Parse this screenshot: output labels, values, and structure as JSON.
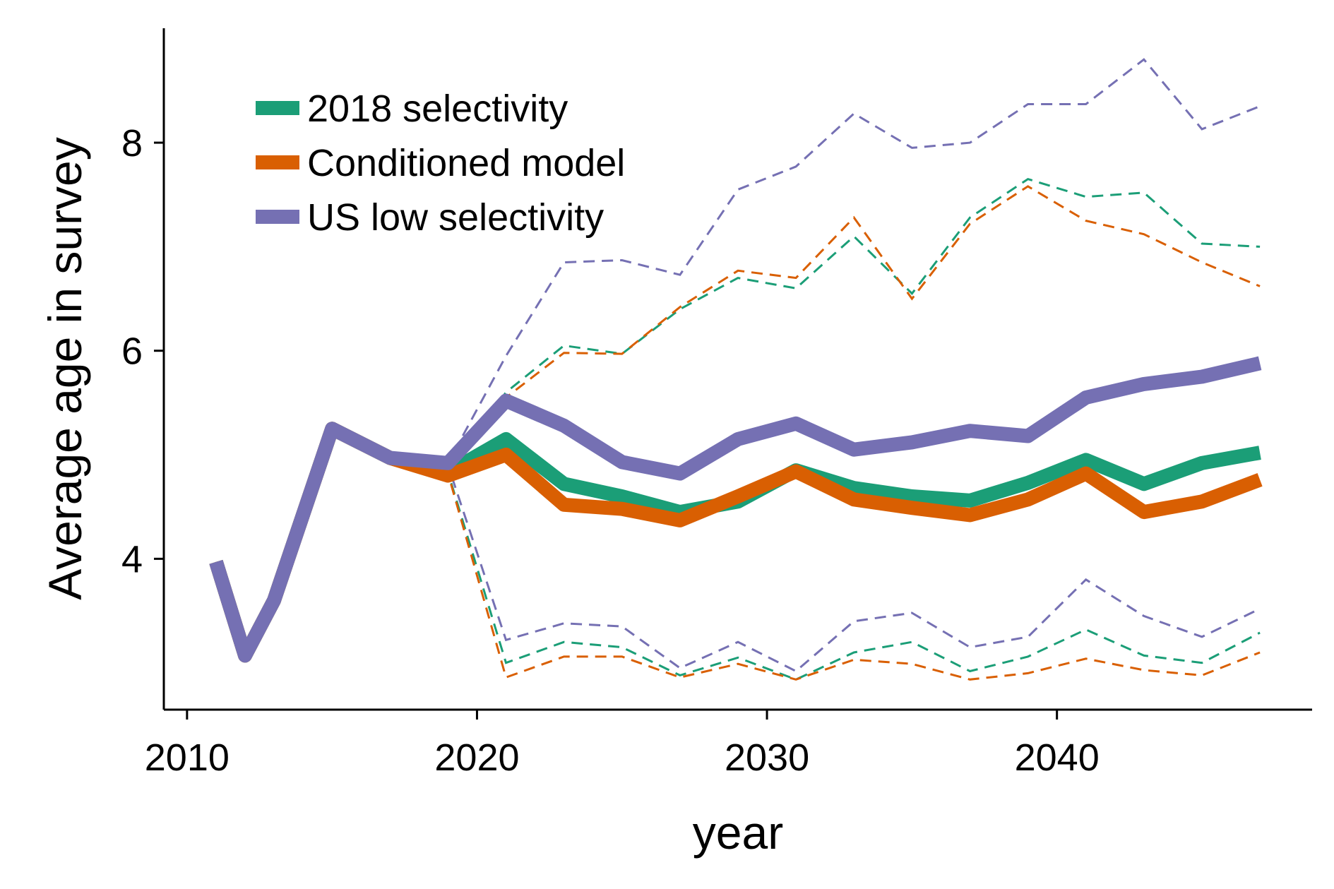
{
  "chart_data": {
    "type": "line",
    "xlabel": "year",
    "ylabel": "Average age in survey",
    "xlim": [
      2009.2,
      2048.8
    ],
    "ylim": [
      2.55,
      9.1
    ],
    "x_ticks": [
      2010,
      2020,
      2030,
      2040
    ],
    "y_ticks": [
      4,
      6,
      8
    ],
    "grid": false,
    "legend_position": "top-left",
    "series": [
      {
        "name": "2018 selectivity",
        "color": "#1b9e77",
        "x": [
          2011,
          2012,
          2013,
          2015,
          2017,
          2019,
          2021,
          2023,
          2025,
          2027,
          2029,
          2031,
          2033,
          2035,
          2037,
          2039,
          2041,
          2043,
          2045,
          2047
        ],
        "median": [
          3.97,
          3.07,
          3.6,
          5.25,
          4.97,
          4.83,
          5.15,
          4.72,
          4.6,
          4.45,
          4.55,
          4.85,
          4.68,
          4.6,
          4.56,
          4.73,
          4.95,
          4.72,
          4.92,
          5.02
        ],
        "upper": [
          3.97,
          3.07,
          3.6,
          5.25,
          4.97,
          4.85,
          5.6,
          6.05,
          5.97,
          6.4,
          6.7,
          6.6,
          7.1,
          6.55,
          7.28,
          7.65,
          7.48,
          7.52,
          7.03,
          7.0
        ],
        "lower": [
          3.97,
          3.07,
          3.6,
          5.25,
          4.97,
          4.83,
          3.0,
          3.2,
          3.15,
          2.88,
          3.05,
          2.84,
          3.1,
          3.2,
          2.92,
          3.06,
          3.32,
          3.07,
          3.0,
          3.29
        ]
      },
      {
        "name": "Conditioned model",
        "color": "#d95f02",
        "x": [
          2011,
          2012,
          2013,
          2015,
          2017,
          2019,
          2021,
          2023,
          2025,
          2027,
          2029,
          2031,
          2033,
          2035,
          2037,
          2039,
          2041,
          2043,
          2045,
          2047
        ],
        "median": [
          3.97,
          3.07,
          3.6,
          5.25,
          4.97,
          4.8,
          5.0,
          4.52,
          4.48,
          4.37,
          4.6,
          4.84,
          4.57,
          4.49,
          4.42,
          4.57,
          4.82,
          4.45,
          4.55,
          4.76
        ],
        "upper": [
          3.97,
          3.07,
          3.6,
          5.25,
          4.97,
          4.87,
          5.55,
          5.98,
          5.97,
          6.42,
          6.77,
          6.7,
          7.28,
          6.5,
          7.22,
          7.58,
          7.25,
          7.12,
          6.85,
          6.62
        ],
        "lower": [
          3.97,
          3.07,
          3.6,
          5.25,
          4.97,
          4.82,
          2.86,
          3.06,
          3.06,
          2.86,
          2.99,
          2.84,
          3.03,
          2.99,
          2.84,
          2.9,
          3.04,
          2.93,
          2.88,
          3.1
        ]
      },
      {
        "name": "US low selectivity",
        "color": "#7570b3",
        "x": [
          2011,
          2012,
          2013,
          2015,
          2017,
          2019,
          2021,
          2023,
          2025,
          2027,
          2029,
          2031,
          2033,
          2035,
          2037,
          2039,
          2041,
          2043,
          2045,
          2047
        ],
        "median": [
          3.97,
          3.07,
          3.6,
          5.25,
          4.97,
          4.92,
          5.52,
          5.28,
          4.93,
          4.82,
          5.15,
          5.3,
          5.05,
          5.12,
          5.23,
          5.18,
          5.55,
          5.68,
          5.75,
          5.88
        ],
        "upper": [
          3.97,
          3.07,
          3.6,
          5.25,
          4.97,
          4.92,
          5.95,
          6.85,
          6.87,
          6.73,
          7.55,
          7.77,
          8.28,
          7.95,
          8.0,
          8.37,
          8.37,
          8.8,
          8.13,
          8.35
        ],
        "lower": [
          3.97,
          3.07,
          3.6,
          5.25,
          4.97,
          4.9,
          3.22,
          3.38,
          3.35,
          2.95,
          3.2,
          2.92,
          3.4,
          3.48,
          3.15,
          3.25,
          3.8,
          3.45,
          3.25,
          3.52
        ]
      }
    ]
  }
}
